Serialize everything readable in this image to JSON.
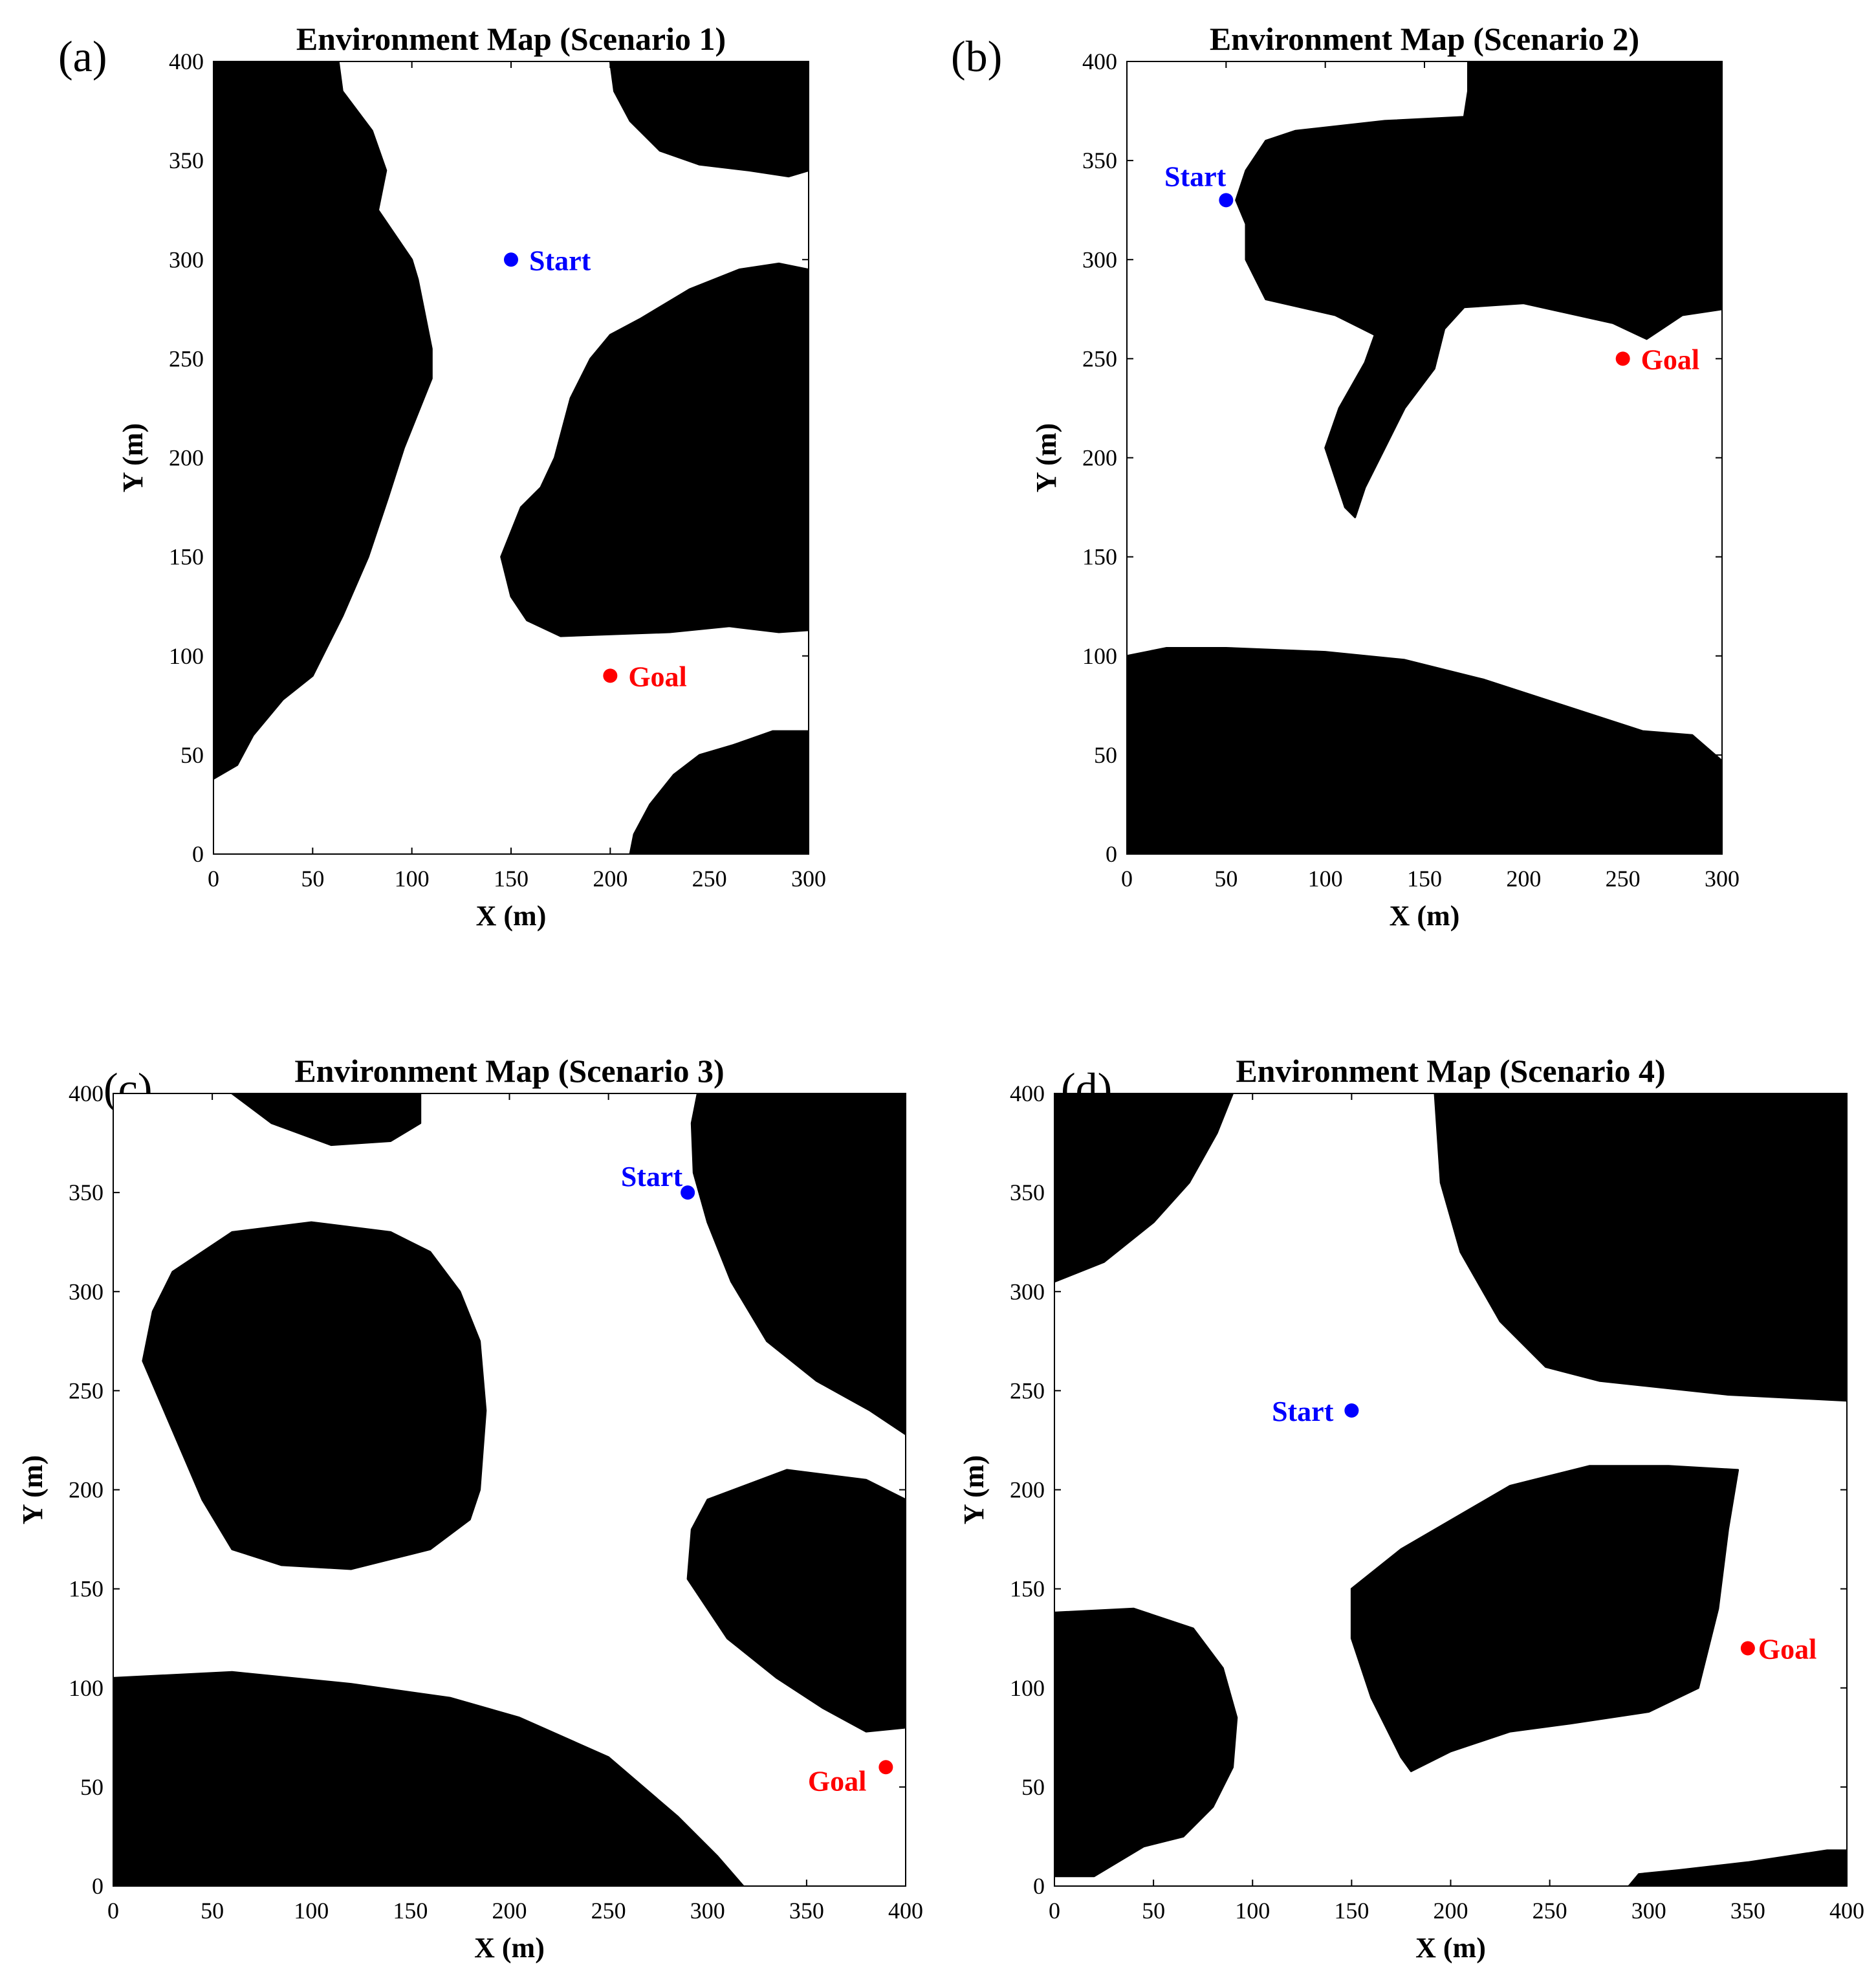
{
  "chart_data": [
    {
      "type": "scatter",
      "panel_label": "(a)",
      "title": "Environment Map (Scenario 1)",
      "xlabel": "X (m)",
      "ylabel": "Y (m)",
      "xlim": [
        0,
        300
      ],
      "ylim": [
        0,
        400
      ],
      "xticks": [
        0,
        50,
        100,
        150,
        200,
        250,
        300
      ],
      "yticks": [
        0,
        50,
        100,
        150,
        200,
        250,
        300,
        350,
        400
      ],
      "points": [
        {
          "label": "Start",
          "x": 150,
          "y": 300,
          "color": "#0000ff"
        },
        {
          "label": "Goal",
          "x": 200,
          "y": 90,
          "color": "#ff0000"
        }
      ],
      "obstacles": [
        [
          [
            0,
            400
          ],
          [
            63,
            400
          ],
          [
            65,
            385
          ],
          [
            80,
            365
          ],
          [
            87,
            345
          ],
          [
            83,
            325
          ],
          [
            100,
            300
          ],
          [
            103,
            290
          ],
          [
            106,
            275
          ],
          [
            110,
            255
          ],
          [
            110,
            240
          ],
          [
            104,
            225
          ],
          [
            96,
            205
          ],
          [
            88,
            180
          ],
          [
            78,
            150
          ],
          [
            65,
            120
          ],
          [
            50,
            90
          ],
          [
            35,
            78
          ],
          [
            20,
            60
          ],
          [
            12,
            45
          ],
          [
            0,
            38
          ]
        ],
        [
          [
            200,
            400
          ],
          [
            300,
            400
          ],
          [
            300,
            345
          ],
          [
            290,
            342
          ],
          [
            270,
            345
          ],
          [
            245,
            348
          ],
          [
            225,
            355
          ],
          [
            210,
            370
          ],
          [
            202,
            385
          ]
        ],
        [
          [
            300,
            295
          ],
          [
            285,
            298
          ],
          [
            265,
            295
          ],
          [
            240,
            285
          ],
          [
            215,
            270
          ],
          [
            200,
            262
          ],
          [
            190,
            250
          ],
          [
            180,
            230
          ],
          [
            172,
            200
          ],
          [
            165,
            185
          ],
          [
            155,
            175
          ],
          [
            145,
            150
          ],
          [
            150,
            130
          ],
          [
            158,
            118
          ],
          [
            175,
            110
          ],
          [
            230,
            112
          ],
          [
            260,
            115
          ],
          [
            285,
            112
          ],
          [
            300,
            113
          ]
        ],
        [
          [
            300,
            62
          ],
          [
            282,
            62
          ],
          [
            262,
            55
          ],
          [
            245,
            50
          ],
          [
            232,
            40
          ],
          [
            220,
            25
          ],
          [
            212,
            10
          ],
          [
            210,
            0
          ],
          [
            300,
            0
          ]
        ]
      ]
    },
    {
      "type": "scatter",
      "panel_label": "(b)",
      "title": "Environment Map (Scenario 2)",
      "xlabel": "X (m)",
      "ylabel": "Y (m)",
      "xlim": [
        0,
        300
      ],
      "ylim": [
        0,
        400
      ],
      "xticks": [
        0,
        50,
        100,
        150,
        200,
        250,
        300
      ],
      "yticks": [
        0,
        50,
        100,
        150,
        200,
        250,
        300,
        350,
        400
      ],
      "points": [
        {
          "label": "Start",
          "x": 50,
          "y": 330,
          "color": "#0000ff"
        },
        {
          "label": "Goal",
          "x": 250,
          "y": 250,
          "color": "#ff0000"
        }
      ],
      "obstacles": [
        [
          [
            172,
            400
          ],
          [
            300,
            400
          ],
          [
            300,
            275
          ],
          [
            280,
            272
          ],
          [
            262,
            260
          ],
          [
            245,
            268
          ],
          [
            200,
            278
          ],
          [
            170,
            276
          ],
          [
            160,
            265
          ],
          [
            155,
            245
          ],
          [
            140,
            225
          ],
          [
            130,
            205
          ],
          [
            120,
            185
          ],
          [
            115,
            170
          ],
          [
            110,
            175
          ],
          [
            105,
            190
          ],
          [
            100,
            205
          ],
          [
            107,
            225
          ],
          [
            120,
            248
          ],
          [
            125,
            262
          ],
          [
            105,
            272
          ],
          [
            70,
            280
          ],
          [
            65,
            290
          ],
          [
            60,
            300
          ],
          [
            60,
            318
          ],
          [
            55,
            330
          ],
          [
            60,
            345
          ],
          [
            70,
            360
          ],
          [
            85,
            365
          ],
          [
            130,
            370
          ],
          [
            170,
            372
          ],
          [
            172,
            385
          ]
        ],
        [
          [
            0,
            100
          ],
          [
            20,
            104
          ],
          [
            50,
            104
          ],
          [
            100,
            102
          ],
          [
            140,
            98
          ],
          [
            180,
            88
          ],
          [
            220,
            75
          ],
          [
            260,
            62
          ],
          [
            285,
            60
          ],
          [
            300,
            47
          ],
          [
            300,
            0
          ],
          [
            0,
            0
          ]
        ]
      ]
    },
    {
      "type": "scatter",
      "panel_label": "(c)",
      "title": "Environment Map (Scenario 3)",
      "xlabel": "X (m)",
      "ylabel": "Y (m)",
      "xlim": [
        0,
        400
      ],
      "ylim": [
        0,
        400
      ],
      "xticks": [
        0,
        50,
        100,
        150,
        200,
        250,
        300,
        350,
        400
      ],
      "yticks": [
        0,
        50,
        100,
        150,
        200,
        250,
        300,
        350,
        400
      ],
      "points": [
        {
          "label": "Start",
          "x": 290,
          "y": 350,
          "color": "#0000ff"
        },
        {
          "label": "Goal",
          "x": 390,
          "y": 60,
          "color": "#ff0000"
        }
      ],
      "obstacles": [
        [
          [
            60,
            400
          ],
          [
            155,
            400
          ],
          [
            155,
            385
          ],
          [
            140,
            376
          ],
          [
            110,
            374
          ],
          [
            80,
            385
          ]
        ],
        [
          [
            295,
            400
          ],
          [
            400,
            400
          ],
          [
            400,
            228
          ],
          [
            382,
            240
          ],
          [
            355,
            255
          ],
          [
            330,
            275
          ],
          [
            312,
            305
          ],
          [
            300,
            335
          ],
          [
            293,
            360
          ],
          [
            292,
            385
          ]
        ],
        [
          [
            60,
            330
          ],
          [
            100,
            335
          ],
          [
            140,
            330
          ],
          [
            160,
            320
          ],
          [
            175,
            300
          ],
          [
            185,
            275
          ],
          [
            188,
            240
          ],
          [
            185,
            200
          ],
          [
            180,
            185
          ],
          [
            160,
            170
          ],
          [
            120,
            160
          ],
          [
            85,
            162
          ],
          [
            60,
            170
          ],
          [
            45,
            195
          ],
          [
            30,
            230
          ],
          [
            15,
            265
          ],
          [
            20,
            290
          ],
          [
            30,
            310
          ]
        ],
        [
          [
            300,
            195
          ],
          [
            340,
            210
          ],
          [
            380,
            205
          ],
          [
            400,
            195
          ],
          [
            400,
            80
          ],
          [
            380,
            78
          ],
          [
            358,
            90
          ],
          [
            335,
            105
          ],
          [
            310,
            125
          ],
          [
            290,
            155
          ],
          [
            292,
            180
          ]
        ],
        [
          [
            0,
            105
          ],
          [
            60,
            108
          ],
          [
            120,
            102
          ],
          [
            170,
            95
          ],
          [
            205,
            85
          ],
          [
            250,
            65
          ],
          [
            285,
            35
          ],
          [
            305,
            15
          ],
          [
            318,
            0
          ],
          [
            0,
            0
          ]
        ]
      ]
    },
    {
      "type": "scatter",
      "panel_label": "(d)",
      "title": "Environment Map (Scenario 4)",
      "xlabel": "X (m)",
      "ylabel": "Y (m)",
      "xlim": [
        0,
        400
      ],
      "ylim": [
        0,
        400
      ],
      "xticks": [
        0,
        50,
        100,
        150,
        200,
        250,
        300,
        350,
        400
      ],
      "yticks": [
        0,
        50,
        100,
        150,
        200,
        250,
        300,
        350,
        400
      ],
      "points": [
        {
          "label": "Start",
          "x": 150,
          "y": 240,
          "color": "#0000ff"
        },
        {
          "label": "Goal",
          "x": 350,
          "y": 120,
          "color": "#ff0000"
        }
      ],
      "obstacles": [
        [
          [
            0,
            400
          ],
          [
            90,
            400
          ],
          [
            82,
            380
          ],
          [
            68,
            355
          ],
          [
            50,
            335
          ],
          [
            25,
            315
          ],
          [
            0,
            305
          ]
        ],
        [
          [
            192,
            400
          ],
          [
            400,
            400
          ],
          [
            400,
            245
          ],
          [
            340,
            248
          ],
          [
            275,
            255
          ],
          [
            248,
            262
          ],
          [
            225,
            285
          ],
          [
            205,
            320
          ],
          [
            195,
            355
          ]
        ],
        [
          [
            150,
            150
          ],
          [
            175,
            170
          ],
          [
            230,
            202
          ],
          [
            270,
            212
          ],
          [
            310,
            212
          ],
          [
            345,
            210
          ],
          [
            340,
            180
          ],
          [
            335,
            140
          ],
          [
            325,
            100
          ],
          [
            300,
            88
          ],
          [
            260,
            82
          ],
          [
            230,
            78
          ],
          [
            200,
            68
          ],
          [
            180,
            58
          ],
          [
            175,
            65
          ],
          [
            160,
            95
          ],
          [
            150,
            125
          ]
        ],
        [
          [
            0,
            138
          ],
          [
            40,
            140
          ],
          [
            70,
            130
          ],
          [
            85,
            110
          ],
          [
            92,
            85
          ],
          [
            90,
            60
          ],
          [
            80,
            40
          ],
          [
            65,
            25
          ],
          [
            45,
            20
          ],
          [
            20,
            5
          ],
          [
            0,
            5
          ]
        ],
        [
          [
            290,
            0
          ],
          [
            295,
            6
          ],
          [
            315,
            8
          ],
          [
            350,
            12
          ],
          [
            390,
            18
          ],
          [
            400,
            18
          ],
          [
            400,
            0
          ]
        ]
      ]
    }
  ]
}
